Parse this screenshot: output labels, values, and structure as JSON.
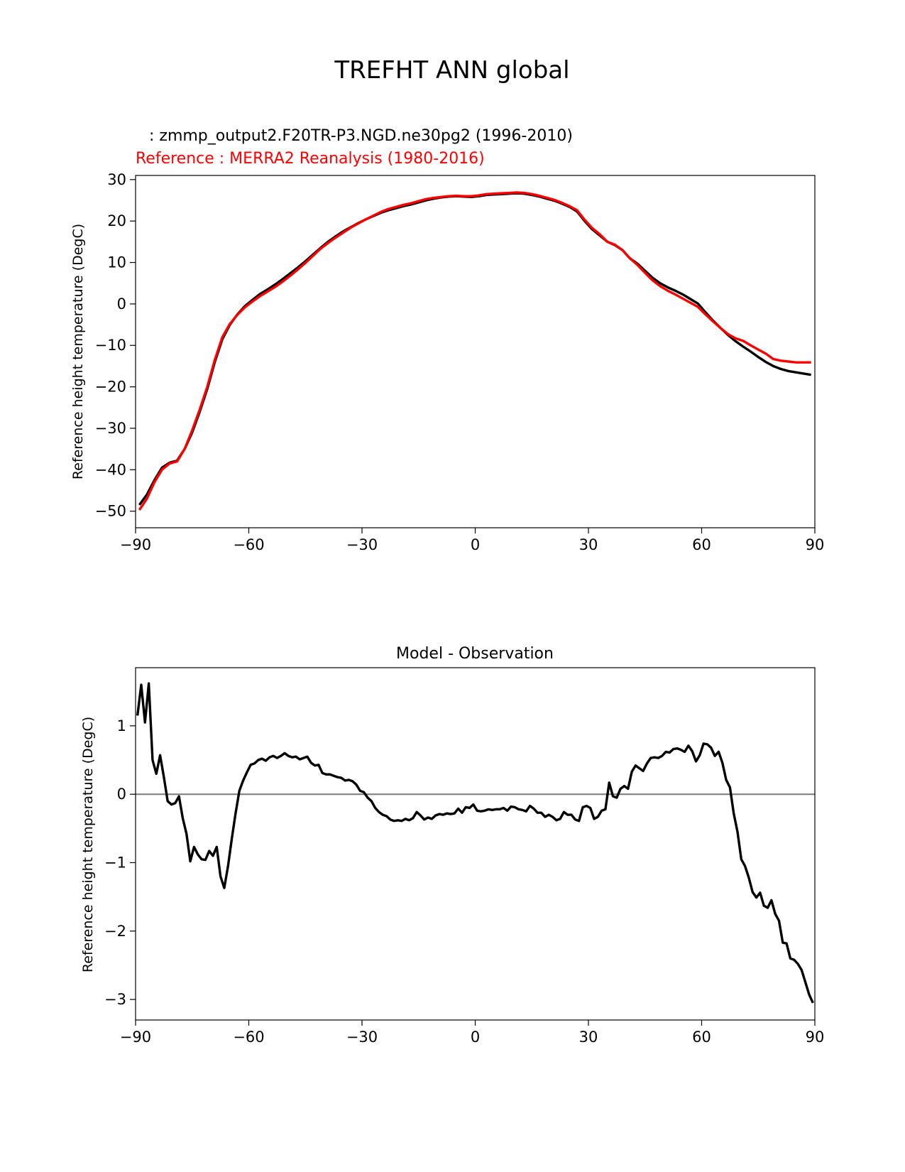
{
  "figure": {
    "suptitle": "TREFHT ANN global"
  },
  "colors": {
    "test": "#000000",
    "reference": "#ff0000",
    "zero_line": "#808080",
    "frame": "#000000"
  },
  "chart_data": [
    {
      "type": "line",
      "title_test": " : zmmp_output2.F20TR-P3.NGD.ne30pg2 (1996-2010)",
      "title_ref": "Reference : MERRA2 Reanalysis (1980-2016)",
      "xlabel": "",
      "ylabel": "Reference height temperature (DegC)",
      "xlim": [
        -90,
        90
      ],
      "ylim": [
        -54,
        31
      ],
      "xticks": [
        -90,
        -60,
        -30,
        0,
        30,
        60,
        90
      ],
      "yticks": [
        -50,
        -40,
        -30,
        -20,
        -10,
        0,
        10,
        20,
        30
      ],
      "series": [
        {
          "name": "test",
          "color": "#000000",
          "x": [
            -89,
            -87,
            -85,
            -83,
            -81,
            -79,
            -77,
            -75,
            -73,
            -71,
            -69,
            -67,
            -65,
            -63,
            -61,
            -59,
            -57,
            -55,
            -53,
            -51,
            -49,
            -47,
            -45,
            -43,
            -41,
            -39,
            -37,
            -35,
            -33,
            -31,
            -29,
            -27,
            -25,
            -23,
            -21,
            -19,
            -17,
            -15,
            -13,
            -11,
            -9,
            -7,
            -5,
            -3,
            -1,
            1,
            3,
            5,
            7,
            9,
            11,
            13,
            15,
            17,
            19,
            21,
            23,
            25,
            27,
            29,
            31,
            33,
            35,
            37,
            39,
            41,
            43,
            45,
            47,
            49,
            51,
            53,
            55,
            57,
            59,
            61,
            63,
            65,
            67,
            69,
            71,
            73,
            75,
            77,
            79,
            81,
            83,
            85,
            87,
            89
          ],
          "y": [
            -48.5,
            -46.0,
            -42.5,
            -39.5,
            -38.3,
            -37.8,
            -35.0,
            -31.0,
            -26.0,
            -20.5,
            -14.0,
            -8.5,
            -5.0,
            -2.5,
            -0.5,
            1.0,
            2.4,
            3.5,
            4.7,
            6.0,
            7.4,
            8.8,
            10.3,
            11.9,
            13.5,
            15.0,
            16.3,
            17.5,
            18.5,
            19.5,
            20.4,
            21.2,
            22.0,
            22.6,
            23.1,
            23.6,
            24.0,
            24.5,
            25.0,
            25.4,
            25.7,
            25.9,
            26.0,
            25.9,
            25.8,
            26.0,
            26.3,
            26.4,
            26.5,
            26.6,
            26.7,
            26.6,
            26.3,
            25.9,
            25.4,
            24.9,
            24.2,
            23.4,
            22.3,
            20.0,
            18.0,
            16.5,
            15.0,
            14.2,
            13.0,
            11.0,
            9.7,
            8.0,
            6.3,
            5.0,
            4.0,
            3.2,
            2.3,
            1.2,
            0.1,
            -2.0,
            -4.0,
            -5.8,
            -7.5,
            -9.0,
            -10.3,
            -11.5,
            -12.8,
            -14.0,
            -15.0,
            -15.7,
            -16.2,
            -16.5,
            -16.8,
            -17.1
          ]
        },
        {
          "name": "reference",
          "color": "#ff0000",
          "x": [
            -89,
            -87,
            -85,
            -83,
            -81,
            -79,
            -77,
            -75,
            -73,
            -71,
            -69,
            -67,
            -65,
            -63,
            -61,
            -59,
            -57,
            -55,
            -53,
            -51,
            -49,
            -47,
            -45,
            -43,
            -41,
            -39,
            -37,
            -35,
            -33,
            -31,
            -29,
            -27,
            -25,
            -23,
            -21,
            -19,
            -17,
            -15,
            -13,
            -11,
            -9,
            -7,
            -5,
            -3,
            -1,
            1,
            3,
            5,
            7,
            9,
            11,
            13,
            15,
            17,
            19,
            21,
            23,
            25,
            27,
            29,
            31,
            33,
            35,
            37,
            39,
            41,
            43,
            45,
            47,
            49,
            51,
            53,
            55,
            57,
            59,
            61,
            63,
            65,
            67,
            69,
            71,
            73,
            75,
            77,
            79,
            81,
            83,
            85,
            87,
            89
          ],
          "y": [
            -49.7,
            -47.0,
            -43.0,
            -40.0,
            -38.5,
            -38.0,
            -35.0,
            -30.5,
            -25.5,
            -20.0,
            -13.5,
            -8.0,
            -4.8,
            -2.6,
            -0.8,
            0.6,
            1.9,
            3.0,
            4.1,
            5.4,
            6.8,
            8.3,
            9.9,
            11.6,
            13.3,
            14.7,
            16.0,
            17.2,
            18.4,
            19.4,
            20.4,
            21.3,
            22.2,
            22.9,
            23.4,
            23.9,
            24.3,
            24.8,
            25.3,
            25.6,
            25.8,
            26.0,
            26.1,
            26.0,
            26.0,
            26.2,
            26.5,
            26.6,
            26.7,
            26.8,
            26.9,
            26.8,
            26.5,
            26.1,
            25.6,
            25.1,
            24.4,
            23.6,
            22.6,
            20.3,
            18.3,
            16.8,
            15.0,
            14.3,
            13.0,
            11.0,
            9.4,
            7.5,
            5.7,
            4.3,
            3.2,
            2.3,
            1.3,
            0.3,
            -0.7,
            -2.5,
            -4.2,
            -5.8,
            -7.3,
            -8.3,
            -8.9,
            -10.0,
            -11.0,
            -12.0,
            -13.3,
            -13.7,
            -13.9,
            -14.1,
            -14.1,
            -14.1
          ]
        }
      ]
    },
    {
      "type": "line",
      "title": "Model - Observation",
      "xlabel": "",
      "ylabel": "Reference height temperature (DegC)",
      "xlim": [
        -90,
        90
      ],
      "ylim": [
        -3.3,
        1.85
      ],
      "xticks": [
        -90,
        -60,
        -30,
        0,
        30,
        60,
        90
      ],
      "yticks": [
        -3,
        -2,
        -1,
        0,
        1
      ],
      "zero_line": 0,
      "series": [
        {
          "name": "difference",
          "color": "#000000",
          "x": [
            -89.5,
            -88.5,
            -87.5,
            -86.5,
            -85.5,
            -84.5,
            -83.5,
            -82.5,
            -81.5,
            -80.5,
            -79.5,
            -78.5,
            -77.5,
            -76.5,
            -75.5,
            -74.5,
            -73.5,
            -72.5,
            -71.5,
            -70.5,
            -69.5,
            -68.5,
            -67.5,
            -66.5,
            -65.5,
            -64.5,
            -63.5,
            -62.5,
            -61.5,
            -60.5,
            -59.5,
            -58.5,
            -57.5,
            -56.5,
            -55.5,
            -54.5,
            -53.5,
            -52.5,
            -51.5,
            -50.5,
            -49.5,
            -48.5,
            -47.5,
            -46.5,
            -45.5,
            -44.5,
            -43.5,
            -42.5,
            -41.5,
            -40.5,
            -39.5,
            -38.5,
            -37.5,
            -36.5,
            -35.5,
            -34.5,
            -33.5,
            -32.5,
            -31.5,
            -30.5,
            -29.5,
            -28.5,
            -27.5,
            -26.5,
            -25.5,
            -24.5,
            -23.5,
            -22.5,
            -21.5,
            -20.5,
            -19.5,
            -18.5,
            -17.5,
            -16.5,
            -15.5,
            -14.5,
            -13.5,
            -12.5,
            -11.5,
            -10.5,
            -9.5,
            -8.5,
            -7.5,
            -6.5,
            -5.5,
            -4.5,
            -3.5,
            -2.5,
            -1.5,
            -0.5,
            0.5,
            1.5,
            2.5,
            3.5,
            4.5,
            5.5,
            6.5,
            7.5,
            8.5,
            9.5,
            10.5,
            11.5,
            12.5,
            13.5,
            14.5,
            15.5,
            16.5,
            17.5,
            18.5,
            19.5,
            20.5,
            21.5,
            22.5,
            23.5,
            24.5,
            25.5,
            26.5,
            27.5,
            28.5,
            29.5,
            30.5,
            31.5,
            32.5,
            33.5,
            34.5,
            35.5,
            36.5,
            37.5,
            38.5,
            39.5,
            40.5,
            41.5,
            42.5,
            43.5,
            44.5,
            45.5,
            46.5,
            47.5,
            48.5,
            49.5,
            50.5,
            51.5,
            52.5,
            53.5,
            54.5,
            55.5,
            56.5,
            57.5,
            58.5,
            59.5,
            60.5,
            61.5,
            62.5,
            63.5,
            64.5,
            65.5,
            66.5,
            67.5,
            68.5,
            69.5,
            70.5,
            71.5,
            72.5,
            73.5,
            74.5,
            75.5,
            76.5,
            77.5,
            78.5,
            79.5,
            80.5,
            81.5,
            82.5,
            83.5,
            84.5,
            85.5,
            86.5,
            87.5,
            88.5,
            89.5
          ],
          "y": [
            1.15,
            1.6,
            1.05,
            1.62,
            0.5,
            0.3,
            0.57,
            0.25,
            -0.1,
            -0.15,
            -0.13,
            -0.03,
            -0.35,
            -0.58,
            -0.98,
            -0.77,
            -0.88,
            -0.95,
            -0.96,
            -0.83,
            -0.9,
            -0.77,
            -1.2,
            -1.37,
            -1.05,
            -0.65,
            -0.28,
            0.05,
            0.2,
            0.32,
            0.43,
            0.45,
            0.5,
            0.52,
            0.49,
            0.54,
            0.56,
            0.53,
            0.56,
            0.6,
            0.56,
            0.54,
            0.55,
            0.51,
            0.53,
            0.55,
            0.46,
            0.42,
            0.43,
            0.31,
            0.29,
            0.29,
            0.27,
            0.25,
            0.24,
            0.2,
            0.21,
            0.19,
            0.14,
            0.05,
            0.03,
            -0.05,
            -0.1,
            -0.2,
            -0.26,
            -0.3,
            -0.32,
            -0.37,
            -0.39,
            -0.38,
            -0.39,
            -0.36,
            -0.38,
            -0.35,
            -0.26,
            -0.31,
            -0.37,
            -0.34,
            -0.36,
            -0.31,
            -0.29,
            -0.3,
            -0.28,
            -0.29,
            -0.28,
            -0.21,
            -0.27,
            -0.19,
            -0.2,
            -0.15,
            -0.24,
            -0.25,
            -0.24,
            -0.22,
            -0.23,
            -0.22,
            -0.22,
            -0.2,
            -0.24,
            -0.18,
            -0.19,
            -0.22,
            -0.23,
            -0.25,
            -0.17,
            -0.21,
            -0.27,
            -0.27,
            -0.33,
            -0.3,
            -0.33,
            -0.38,
            -0.36,
            -0.26,
            -0.3,
            -0.3,
            -0.37,
            -0.39,
            -0.19,
            -0.17,
            -0.2,
            -0.36,
            -0.33,
            -0.24,
            -0.22,
            0.17,
            -0.03,
            -0.05,
            0.08,
            0.12,
            0.08,
            0.33,
            0.42,
            0.38,
            0.34,
            0.45,
            0.53,
            0.54,
            0.53,
            0.56,
            0.62,
            0.61,
            0.66,
            0.67,
            0.65,
            0.62,
            0.71,
            0.63,
            0.48,
            0.57,
            0.74,
            0.73,
            0.68,
            0.56,
            0.62,
            0.46,
            0.21,
            0.1,
            -0.28,
            -0.55,
            -0.95,
            -1.05,
            -1.22,
            -1.43,
            -1.51,
            -1.44,
            -1.63,
            -1.66,
            -1.55,
            -1.75,
            -1.85,
            -2.17,
            -2.18,
            -2.4,
            -2.42,
            -2.48,
            -2.57,
            -2.75,
            -2.93,
            -3.05
          ]
        }
      ]
    }
  ]
}
